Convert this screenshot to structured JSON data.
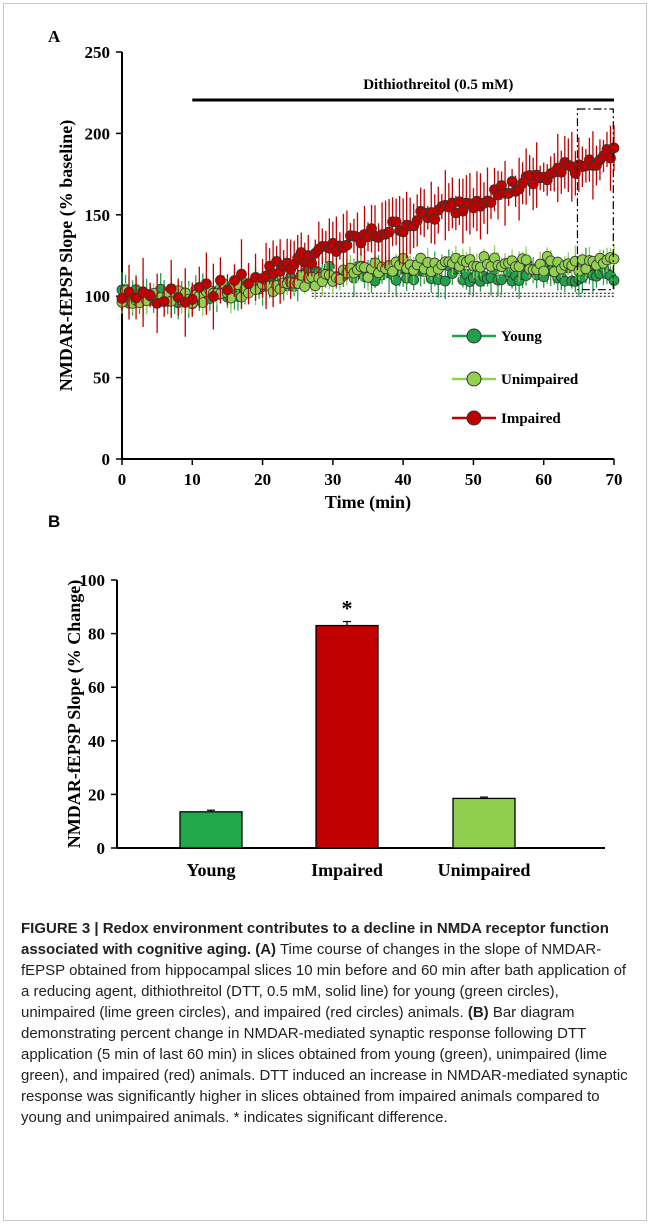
{
  "figure": {
    "panel_a_label": "A",
    "panel_b_label": "B",
    "drug_label": "Dithiothreitol  (0.5 mM)"
  },
  "caption": {
    "heading": "FIGURE 3 | Redox environment contributes to a decline in NMDA receptor function associated with cognitive aging.",
    "a_label": "(A)",
    "a_text": " Time course of changes in the slope of NMDAR-fEPSP obtained from hippocampal slices 10 min before and 60 min after bath application of a reducing agent, dithiothreitol (DTT, 0.5 mM, solid line) for young (green circles), unimpaired (lime green circles), and impaired (red circles) animals. ",
    "b_label": "(B)",
    "b_text": " Bar diagram demonstrating percent change in NMDAR-mediated synaptic response following DTT application (5 min of last 60 min) in slices obtained from young (green), unimpaired (lime green), and impaired (red) animals. DTT induced an increase in NMDAR-mediated synaptic response was significantly higher in slices obtained from impaired animals compared to young and unimpaired animals. * indicates significant difference."
  },
  "colors": {
    "young": "#22a04a",
    "unimpaired": "#92d050",
    "impaired": "#c00000",
    "young_bar": "#21a84a",
    "impaired_bar": "#c00000",
    "unimpaired_bar": "#8fce4f"
  },
  "chart_data": [
    {
      "type": "scatter",
      "title": "",
      "xlabel": "Time (min)",
      "ylabel": "NMDAR-fEPSP Slope (% baseline)",
      "xlim": [
        0,
        70
      ],
      "ylim": [
        0,
        250
      ],
      "xticks": [
        0,
        10,
        20,
        30,
        40,
        50,
        60,
        70
      ],
      "yticks": [
        0,
        50,
        100,
        150,
        200,
        250
      ],
      "baseline": 100,
      "drug_application": {
        "label": "Dithiothreitol  (0.5 mM)",
        "start": 10,
        "end": 70
      },
      "legend": {
        "placement": "lower-right",
        "entries": [
          "Young",
          "Unimpaired",
          "Impaired"
        ]
      },
      "series": [
        {
          "name": "Young",
          "start": 100,
          "end": 114,
          "plateau_time": 30,
          "error": 10
        },
        {
          "name": "Unimpaired",
          "start": 100,
          "end": 120,
          "plateau_time": 42,
          "error": 8
        },
        {
          "name": "Impaired",
          "start": 100,
          "end": 188,
          "plateau_time": 70,
          "error": 18
        }
      ],
      "annotation": "dash-dot box marking analysis window 65–70 min"
    },
    {
      "type": "bar",
      "title": "",
      "xlabel": "",
      "ylabel": "NMDAR-fEPSP Slope (% Change)",
      "ylim": [
        0,
        100
      ],
      "yticks": [
        0,
        20,
        40,
        60,
        80,
        100
      ],
      "categories": [
        "Young",
        "Impaired",
        "Unimpaired"
      ],
      "values": [
        13.5,
        83,
        18.5
      ],
      "errors": [
        0.6,
        1.5,
        0.5
      ],
      "significance": {
        "category": "Impaired",
        "marker": "*"
      }
    }
  ]
}
